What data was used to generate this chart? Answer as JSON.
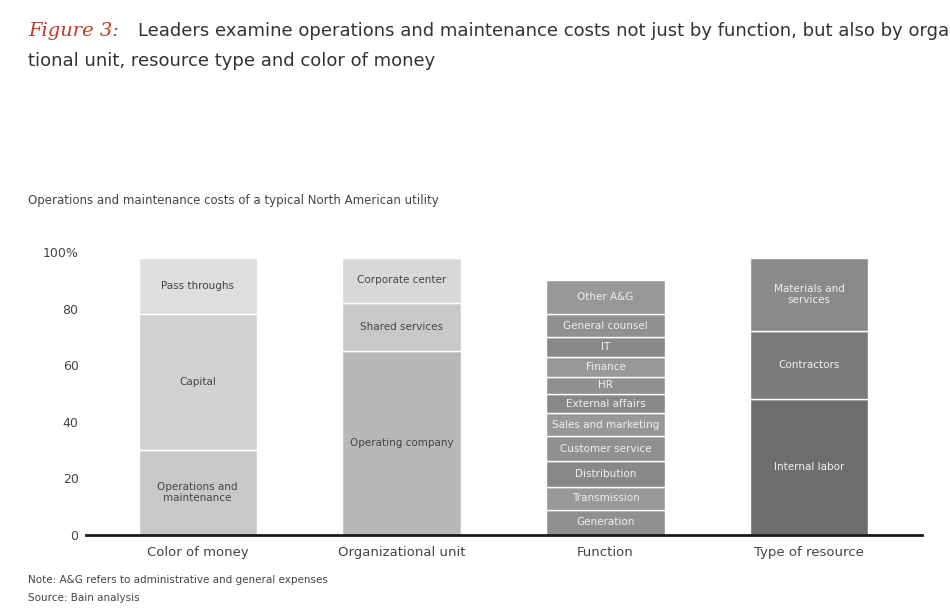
{
  "subtitle": "Operations and maintenance costs of a typical North American utility",
  "title_italic": "Figure 3:",
  "title_line1": "Leaders examine operations and maintenance costs not just by function, but also by organiza-",
  "title_line2": "tional unit, resource type and color of money",
  "note": "Note: A&G refers to administrative and general expenses",
  "source": "Source: Bain analysis",
  "bars": {
    "Color of money": {
      "segments": [
        {
          "label": "Operations and\nmaintenance",
          "value": 30,
          "color": "#c8c8c8"
        },
        {
          "label": "Capital",
          "value": 48,
          "color": "#d2d2d2"
        },
        {
          "label": "Pass throughs",
          "value": 20,
          "color": "#dedede"
        }
      ]
    },
    "Organizational unit": {
      "segments": [
        {
          "label": "Operating company",
          "value": 65,
          "color": "#b8b8b8"
        },
        {
          "label": "Shared services",
          "value": 17,
          "color": "#c8c8c8"
        },
        {
          "label": "Corporate center",
          "value": 16,
          "color": "#d8d8d8"
        }
      ]
    },
    "Function": {
      "segments": [
        {
          "label": "Generation",
          "value": 9,
          "color": "#909090"
        },
        {
          "label": "Transmission",
          "value": 8,
          "color": "#989898"
        },
        {
          "label": "Distribution",
          "value": 9,
          "color": "#888888"
        },
        {
          "label": "Customer service",
          "value": 9,
          "color": "#909090"
        },
        {
          "label": "Sales and marketing",
          "value": 8,
          "color": "#989898"
        },
        {
          "label": "External affairs",
          "value": 7,
          "color": "#888888"
        },
        {
          "label": "HR",
          "value": 6,
          "color": "#909090"
        },
        {
          "label": "Finance",
          "value": 7,
          "color": "#989898"
        },
        {
          "label": "IT",
          "value": 7,
          "color": "#888888"
        },
        {
          "label": "General counsel",
          "value": 8,
          "color": "#909090"
        },
        {
          "label": "Other A&G",
          "value": 12,
          "color": "#989898"
        }
      ]
    },
    "Type of resource": {
      "segments": [
        {
          "label": "Internal labor",
          "value": 48,
          "color": "#6e6e6e"
        },
        {
          "label": "Contractors",
          "value": 24,
          "color": "#7a7a7a"
        },
        {
          "label": "Materials and\nservices",
          "value": 26,
          "color": "#8a8a8a"
        }
      ]
    }
  },
  "bar_order": [
    "Color of money",
    "Organizational unit",
    "Function",
    "Type of resource"
  ],
  "ylim": [
    0,
    100
  ],
  "yticks": [
    0,
    20,
    40,
    60,
    80,
    100
  ],
  "ytick_labels": [
    "0",
    "20",
    "40",
    "60",
    "80",
    "100%"
  ],
  "bg_color": "#ffffff",
  "text_color_dark": "#444444",
  "text_color_light": "#f0f0f0",
  "divider_color": "#ffffff",
  "bar_width": 0.58,
  "title_color_red": "#c0392b",
  "title_color_dark": "#333333"
}
